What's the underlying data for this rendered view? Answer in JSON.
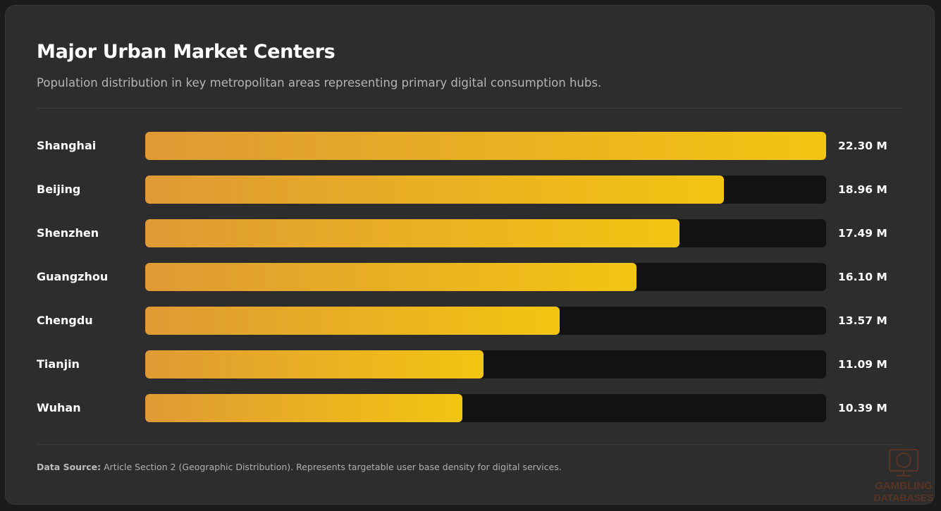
{
  "header": {
    "title": "Major Urban Market Centers",
    "subtitle": "Population distribution in key metropolitan areas representing primary digital consumption hubs."
  },
  "chart_data": {
    "type": "bar",
    "orientation": "horizontal",
    "title": "Major Urban Market Centers",
    "categories": [
      "Shanghai",
      "Beijing",
      "Shenzhen",
      "Guangzhou",
      "Chengdu",
      "Tianjin",
      "Wuhan"
    ],
    "values": [
      22.3,
      18.96,
      17.49,
      16.1,
      13.57,
      11.09,
      10.39
    ],
    "value_labels": [
      "22.30 M",
      "18.96 M",
      "17.49 M",
      "16.10 M",
      "13.57 M",
      "11.09 M",
      "10.39 M"
    ],
    "unit": "M",
    "xlim": [
      0,
      22.3
    ],
    "grid": false,
    "colors": {
      "bar_start": "#df9a35",
      "bar_end": "#f2c511",
      "track": "#121212"
    }
  },
  "footer": {
    "source_label": "Data Source:",
    "source_text": "Article Section 2 (Geographic Distribution). Represents targetable user base density for digital services."
  },
  "watermark": {
    "text": "GAMBLING DATABASES",
    "icon": "monitor-poker-chip-icon",
    "color": "#7a3a1c"
  }
}
